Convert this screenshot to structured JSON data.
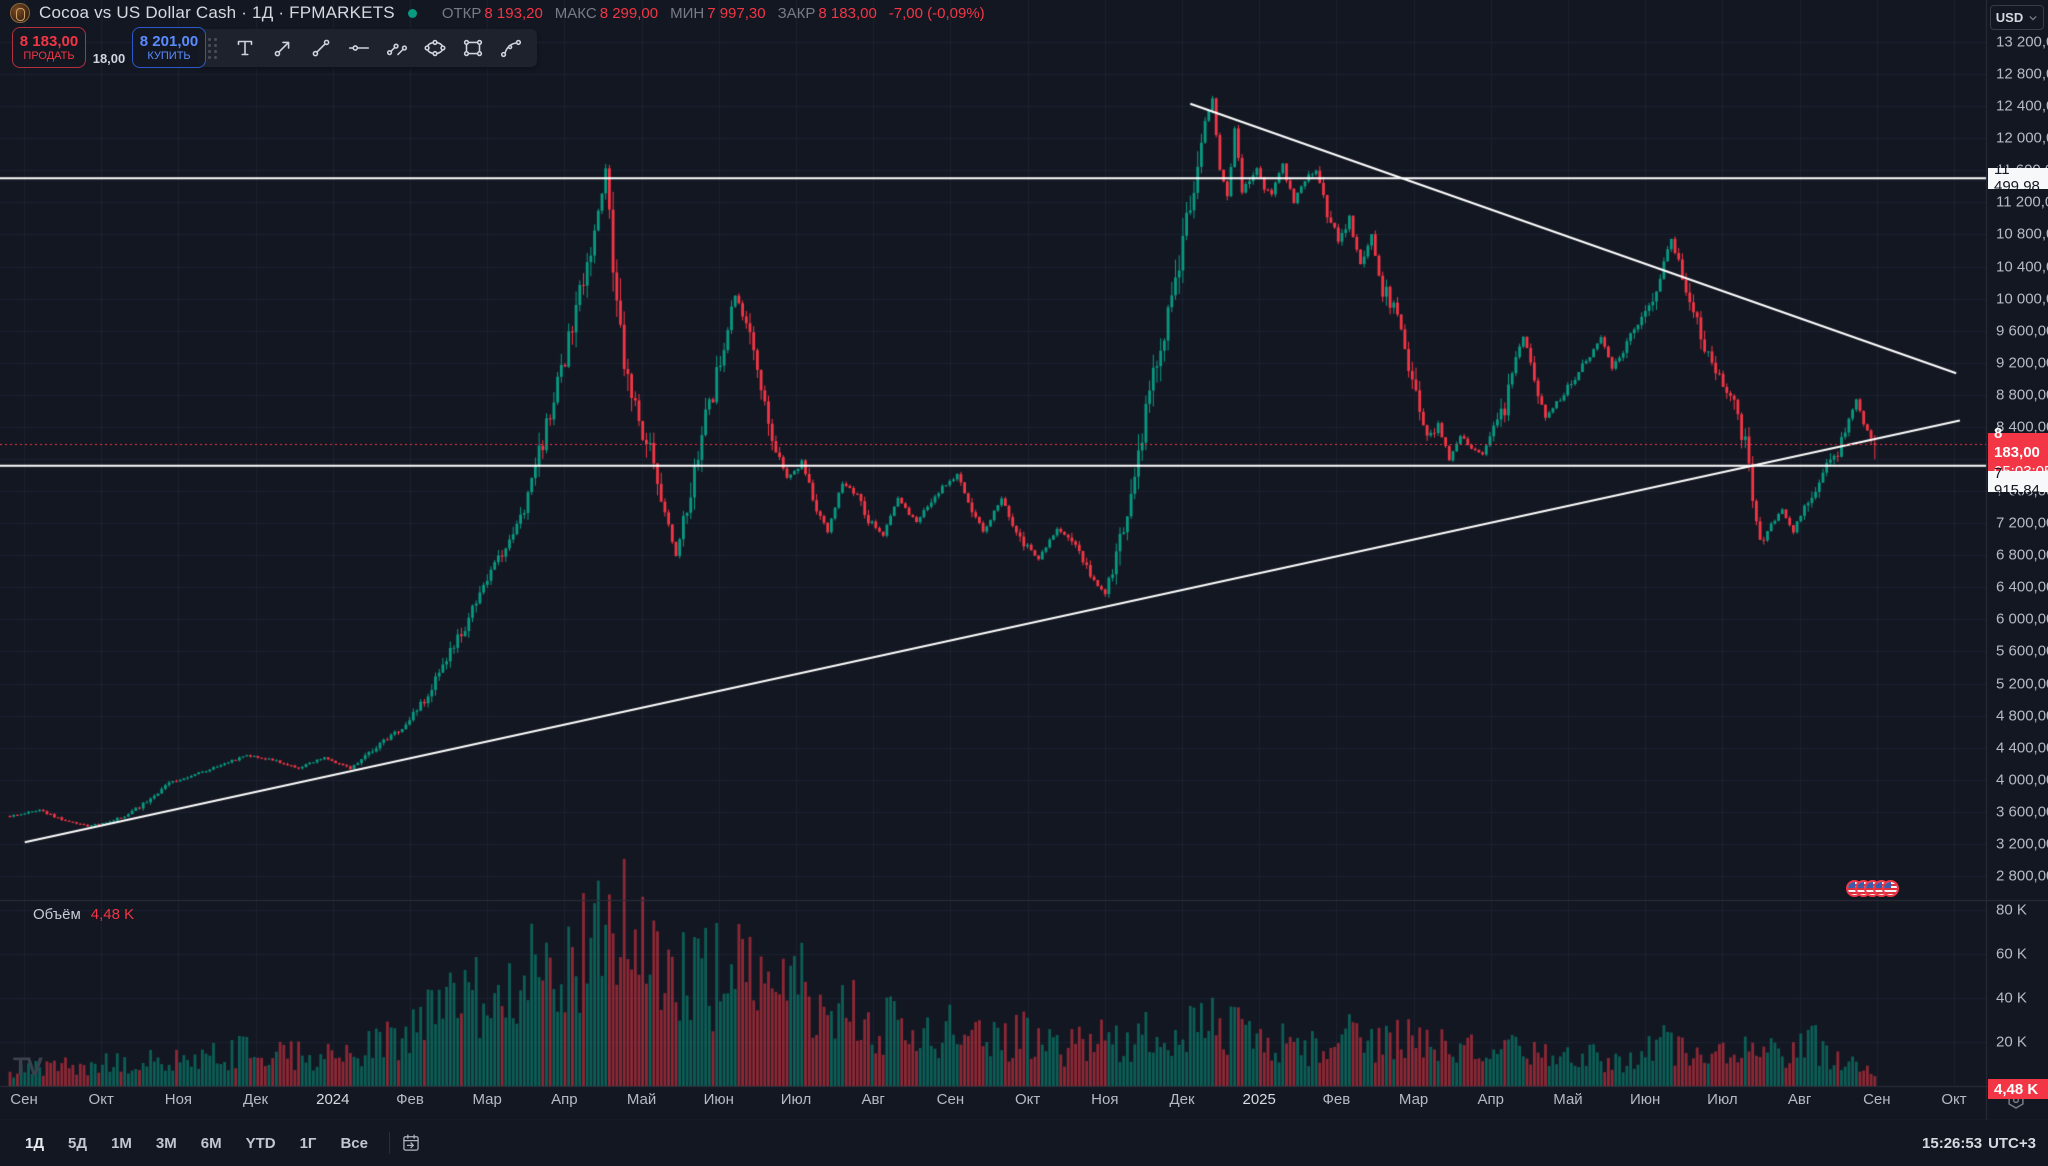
{
  "header": {
    "title": "Cocoa vs US Dollar Cash · 1Д · FPMARKETS",
    "status_color": "#089981",
    "ohlc": [
      {
        "label": "ОТКР",
        "value": "8 193,20"
      },
      {
        "label": "МАКС",
        "value": "8 299,00"
      },
      {
        "label": "МИН",
        "value": "7 997,30"
      },
      {
        "label": "ЗАКР",
        "value": "8 183,00"
      }
    ],
    "change": "-7,00 (-0,09%)",
    "value_color": "#f23645"
  },
  "trade_panel": {
    "sell_price": "8 183,00",
    "sell_label": "ПРОДАТЬ",
    "spread": "18,00",
    "buy_price": "8 201,00",
    "buy_label": "КУПИТЬ"
  },
  "draw_toolbar": {
    "tools": [
      "text-tool",
      "arrow-tool",
      "trend-line-tool",
      "horizontal-ray-tool",
      "parallel-channel-tool",
      "ellipse-tool",
      "rectangle-tool",
      "curve-tool"
    ]
  },
  "price_axis": {
    "currency": "USD",
    "labels": {
      "upper_line": "11 499,98",
      "last_price": "8 183,00",
      "countdown": "05:03:05",
      "lower_line": "7 915,84",
      "volume": "4,48 K"
    }
  },
  "volume_pane": {
    "label": "Объём",
    "value": "4,48 K"
  },
  "time_axis": {
    "labels": [
      "Сен",
      "Окт",
      "Ноя",
      "Дек",
      "2024",
      "Фев",
      "Мар",
      "Апр",
      "Май",
      "Июн",
      "Июл",
      "Авг",
      "Сен",
      "Окт",
      "Ноя",
      "Дек",
      "2025",
      "Фев",
      "Мар",
      "Апр",
      "Май",
      "Июн",
      "Июл",
      "Авг",
      "Сен",
      "Окт"
    ],
    "year_labels": [
      "2024",
      "2025"
    ]
  },
  "bottom_bar": {
    "ranges": [
      "1Д",
      "5Д",
      "1М",
      "3М",
      "6М",
      "YTD",
      "1Г",
      "Все"
    ],
    "active_range": "1Д",
    "clock": "15:26:53",
    "timezone": "UTC+3"
  },
  "watermark": "TV",
  "events": {
    "icon": "us-flag-icon",
    "count": 5
  },
  "chart_data": {
    "type": "candlestick+volume",
    "title": "Cocoa vs US Dollar Cash",
    "timeframe": "1D",
    "price_ticks": [
      13200,
      12800,
      12400,
      12000,
      11600,
      11200,
      10800,
      10400,
      10000,
      9600,
      9200,
      8800,
      8400,
      8000,
      7600,
      7200,
      6800,
      6400,
      6000,
      5600,
      5200,
      4800,
      4400,
      4000,
      3600,
      3200,
      2800
    ],
    "volume_ticks_k": [
      80,
      60,
      40,
      20
    ],
    "ylim": [
      2800,
      13200
    ],
    "n_days": 505,
    "candle_anchors": [
      [
        0,
        3550
      ],
      [
        8,
        3620
      ],
      [
        14,
        3500
      ],
      [
        21,
        3420
      ],
      [
        26,
        3470
      ],
      [
        32,
        3560
      ],
      [
        43,
        3950
      ],
      [
        52,
        4100
      ],
      [
        58,
        4200
      ],
      [
        64,
        4310
      ],
      [
        70,
        4260
      ],
      [
        78,
        4150
      ],
      [
        85,
        4280
      ],
      [
        92,
        4140
      ],
      [
        100,
        4450
      ],
      [
        107,
        4700
      ],
      [
        113,
        5050
      ],
      [
        118,
        5500
      ],
      [
        124,
        6000
      ],
      [
        128,
        6400
      ],
      [
        134,
        6900
      ],
      [
        139,
        7350
      ],
      [
        145,
        8400
      ],
      [
        150,
        9300
      ],
      [
        155,
        10300
      ],
      [
        159,
        11100
      ],
      [
        161,
        11560
      ],
      [
        163,
        10400
      ],
      [
        166,
        9300
      ],
      [
        170,
        8500
      ],
      [
        173,
        8100
      ],
      [
        176,
        7450
      ],
      [
        180,
        6800
      ],
      [
        184,
        7600
      ],
      [
        188,
        8500
      ],
      [
        192,
        9200
      ],
      [
        196,
        10050
      ],
      [
        199,
        9700
      ],
      [
        202,
        9200
      ],
      [
        206,
        8300
      ],
      [
        210,
        7750
      ],
      [
        214,
        7950
      ],
      [
        218,
        7400
      ],
      [
        221,
        7100
      ],
      [
        225,
        7700
      ],
      [
        229,
        7550
      ],
      [
        232,
        7250
      ],
      [
        236,
        7050
      ],
      [
        240,
        7500
      ],
      [
        245,
        7200
      ],
      [
        250,
        7550
      ],
      [
        256,
        7800
      ],
      [
        260,
        7350
      ],
      [
        263,
        7100
      ],
      [
        268,
        7500
      ],
      [
        273,
        7000
      ],
      [
        278,
        6750
      ],
      [
        283,
        7150
      ],
      [
        288,
        6900
      ],
      [
        292,
        6550
      ],
      [
        296,
        6300
      ],
      [
        300,
        7000
      ],
      [
        304,
        7900
      ],
      [
        308,
        8800
      ],
      [
        312,
        9600
      ],
      [
        316,
        10500
      ],
      [
        320,
        11500
      ],
      [
        323,
        12200
      ],
      [
        325,
        12500
      ],
      [
        327,
        11600
      ],
      [
        329,
        11250
      ],
      [
        331,
        12150
      ],
      [
        333,
        11300
      ],
      [
        335,
        11500
      ],
      [
        337,
        11650
      ],
      [
        339,
        11350
      ],
      [
        341,
        11300
      ],
      [
        344,
        11650
      ],
      [
        347,
        11200
      ],
      [
        350,
        11500
      ],
      [
        353,
        11600
      ],
      [
        356,
        11050
      ],
      [
        359,
        10750
      ],
      [
        362,
        11000
      ],
      [
        365,
        10400
      ],
      [
        368,
        10750
      ],
      [
        371,
        10100
      ],
      [
        374,
        9900
      ],
      [
        377,
        9400
      ],
      [
        380,
        8800
      ],
      [
        383,
        8250
      ],
      [
        386,
        8450
      ],
      [
        389,
        7980
      ],
      [
        392,
        8300
      ],
      [
        395,
        8150
      ],
      [
        398,
        8050
      ],
      [
        401,
        8350
      ],
      [
        404,
        8600
      ],
      [
        407,
        9300
      ],
      [
        409,
        9550
      ],
      [
        412,
        9000
      ],
      [
        415,
        8500
      ],
      [
        418,
        8700
      ],
      [
        421,
        8900
      ],
      [
        424,
        9100
      ],
      [
        427,
        9300
      ],
      [
        430,
        9500
      ],
      [
        433,
        9150
      ],
      [
        436,
        9350
      ],
      [
        439,
        9600
      ],
      [
        443,
        9900
      ],
      [
        446,
        10300
      ],
      [
        449,
        10750
      ],
      [
        452,
        10300
      ],
      [
        455,
        9900
      ],
      [
        458,
        9400
      ],
      [
        461,
        9100
      ],
      [
        464,
        8900
      ],
      [
        467,
        8600
      ],
      [
        470,
        7900
      ],
      [
        473,
        6950
      ],
      [
        476,
        7200
      ],
      [
        479,
        7350
      ],
      [
        482,
        7100
      ],
      [
        485,
        7400
      ],
      [
        488,
        7650
      ],
      [
        491,
        7900
      ],
      [
        494,
        8100
      ],
      [
        497,
        8500
      ],
      [
        499,
        8750
      ],
      [
        501,
        8450
      ],
      [
        503,
        8300
      ],
      [
        504,
        8183
      ]
    ],
    "volume_anchors_k": [
      [
        0,
        7
      ],
      [
        20,
        9
      ],
      [
        43,
        12
      ],
      [
        64,
        15
      ],
      [
        85,
        13
      ],
      [
        100,
        18
      ],
      [
        107,
        24
      ],
      [
        118,
        34
      ],
      [
        128,
        42
      ],
      [
        140,
        48
      ],
      [
        152,
        55
      ],
      [
        160,
        62
      ],
      [
        164,
        72
      ],
      [
        168,
        78
      ],
      [
        173,
        60
      ],
      [
        180,
        52
      ],
      [
        188,
        48
      ],
      [
        196,
        50
      ],
      [
        205,
        42
      ],
      [
        214,
        46
      ],
      [
        222,
        38
      ],
      [
        232,
        30
      ],
      [
        240,
        26
      ],
      [
        250,
        24
      ],
      [
        258,
        28
      ],
      [
        266,
        20
      ],
      [
        274,
        24
      ],
      [
        283,
        17
      ],
      [
        292,
        19
      ],
      [
        300,
        21
      ],
      [
        308,
        23
      ],
      [
        316,
        26
      ],
      [
        322,
        30
      ],
      [
        327,
        26
      ],
      [
        335,
        22
      ],
      [
        344,
        20
      ],
      [
        352,
        17
      ],
      [
        360,
        23
      ],
      [
        368,
        19
      ],
      [
        376,
        21
      ],
      [
        384,
        20
      ],
      [
        392,
        15
      ],
      [
        400,
        17
      ],
      [
        408,
        15
      ],
      [
        416,
        12
      ],
      [
        424,
        14
      ],
      [
        432,
        11
      ],
      [
        440,
        12
      ],
      [
        447,
        20
      ],
      [
        454,
        14
      ],
      [
        461,
        12
      ],
      [
        468,
        15
      ],
      [
        474,
        18
      ],
      [
        481,
        14
      ],
      [
        488,
        19
      ],
      [
        493,
        13
      ],
      [
        498,
        9
      ],
      [
        502,
        6
      ],
      [
        504,
        4.48
      ]
    ],
    "last_candle": {
      "open": 8193.2,
      "high": 8299,
      "low": 7997.3,
      "close": 8183
    },
    "trend_lines": [
      {
        "name": "ascending-support",
        "from_day": 4,
        "from_price": 3220,
        "to_day": 527,
        "to_price": 8480
      },
      {
        "name": "descending-resistance",
        "from_day": 319,
        "from_price": 12430,
        "to_day": 526,
        "to_price": 9070
      }
    ],
    "horizontal_lines": [
      11499.98,
      7915.84
    ],
    "last_price": 8183,
    "colors": {
      "background": "#131722",
      "grid": "#1b2130",
      "separator": "#2a2e39",
      "up": "#089981",
      "down": "#f23645",
      "line": "#ffffff",
      "last_price_line": "#f23645"
    }
  }
}
